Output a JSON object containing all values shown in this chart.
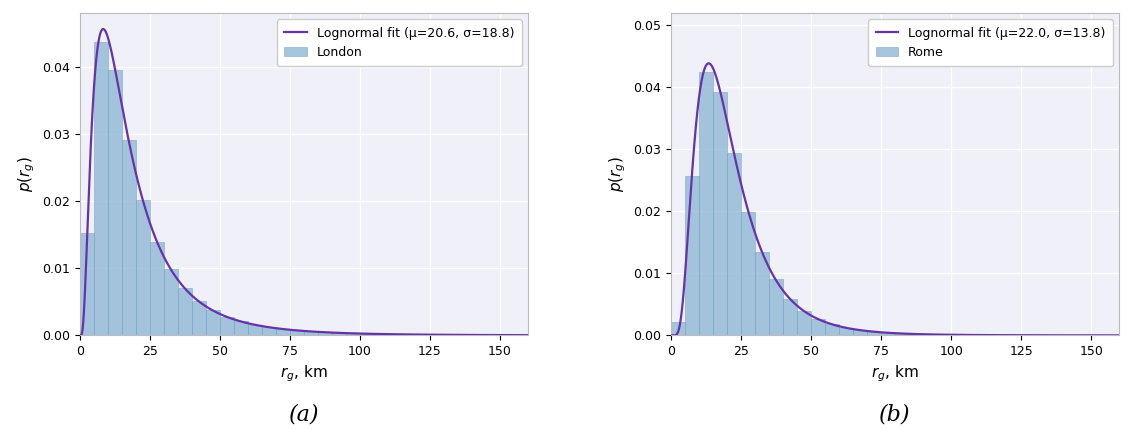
{
  "london": {
    "mu": 20.6,
    "sigma": 18.8,
    "label": "London",
    "fit_label": "Lognormal fit (μ=20.6, σ=18.8)",
    "ylim": [
      0,
      0.048
    ],
    "yticks": [
      0.0,
      0.01,
      0.02,
      0.03,
      0.04
    ],
    "yticklabels": [
      "0.00",
      "0.01",
      "0.02",
      "0.03",
      "0.04"
    ]
  },
  "rome": {
    "mu": 22.0,
    "sigma": 13.8,
    "label": "Rome",
    "fit_label": "Lognormal fit (μ=22.0, σ=13.8)",
    "ylim": [
      0,
      0.052
    ],
    "yticks": [
      0.0,
      0.01,
      0.02,
      0.03,
      0.04,
      0.05
    ],
    "yticklabels": [
      "0.00",
      "0.01",
      "0.02",
      "0.03",
      "0.04",
      "0.05"
    ]
  },
  "xlim": [
    0,
    160
  ],
  "xticks": [
    0,
    25,
    50,
    75,
    100,
    125,
    150
  ],
  "xlabel": "$r_g$, km",
  "bar_color": "#8ab4d4",
  "bar_edgecolor": "#6699bb",
  "fit_color": "#6633aa",
  "fit_linewidth": 1.6,
  "bar_alpha": 0.75,
  "n_bins": 32,
  "x_max_data": 160,
  "subtitle_a": "(a)",
  "subtitle_b": "(b)",
  "background_color": "#ffffff",
  "plot_bg_color": "#f0f0f8",
  "grid_color": "#ffffff",
  "grid_linewidth": 1.0,
  "tick_fontsize": 9,
  "label_fontsize": 11,
  "legend_fontsize": 9,
  "subtitle_fontsize": 16
}
